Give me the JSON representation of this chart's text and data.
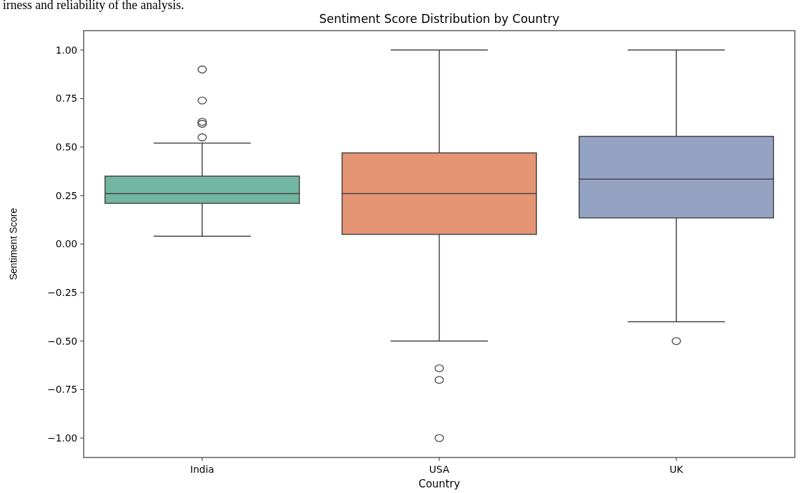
{
  "chart_data": {
    "type": "box",
    "title": "Sentiment Score Distribution by Country",
    "xlabel": "Country",
    "ylabel": "Sentiment Score",
    "annotations": [
      "irness and reliability of the analysis."
    ],
    "categories": [
      "India",
      "USA",
      "UK"
    ],
    "colors": [
      "#72b6a1",
      "#e59474",
      "#95a3c3"
    ],
    "boxes": [
      {
        "low": 0.04,
        "q1": 0.21,
        "median": 0.26,
        "q3": 0.35,
        "high": 0.52,
        "outliers": [
          0.55,
          0.62,
          0.63,
          0.74,
          0.9
        ]
      },
      {
        "low": -0.5,
        "q1": 0.05,
        "median": 0.26,
        "q3": 0.47,
        "high": 1.0,
        "outliers": [
          -0.64,
          -0.7,
          -1.0
        ]
      },
      {
        "low": -0.4,
        "q1": 0.135,
        "median": 0.335,
        "q3": 0.555,
        "high": 1.0,
        "outliers": [
          -0.5
        ]
      }
    ],
    "ylim": [
      -1.1,
      1.1
    ],
    "yticks": [
      {
        "value": -1,
        "label": "−1.00"
      },
      {
        "value": -0.75,
        "label": "−0.75"
      },
      {
        "value": -0.5,
        "label": "−0.50"
      },
      {
        "value": -0.25,
        "label": "−0.25"
      },
      {
        "value": 0,
        "label": "0.00"
      },
      {
        "value": 0.25,
        "label": "0.25"
      },
      {
        "value": 0.5,
        "label": "0.50"
      },
      {
        "value": 0.75,
        "label": "0.75"
      },
      {
        "value": 1,
        "label": "1.00"
      }
    ]
  }
}
